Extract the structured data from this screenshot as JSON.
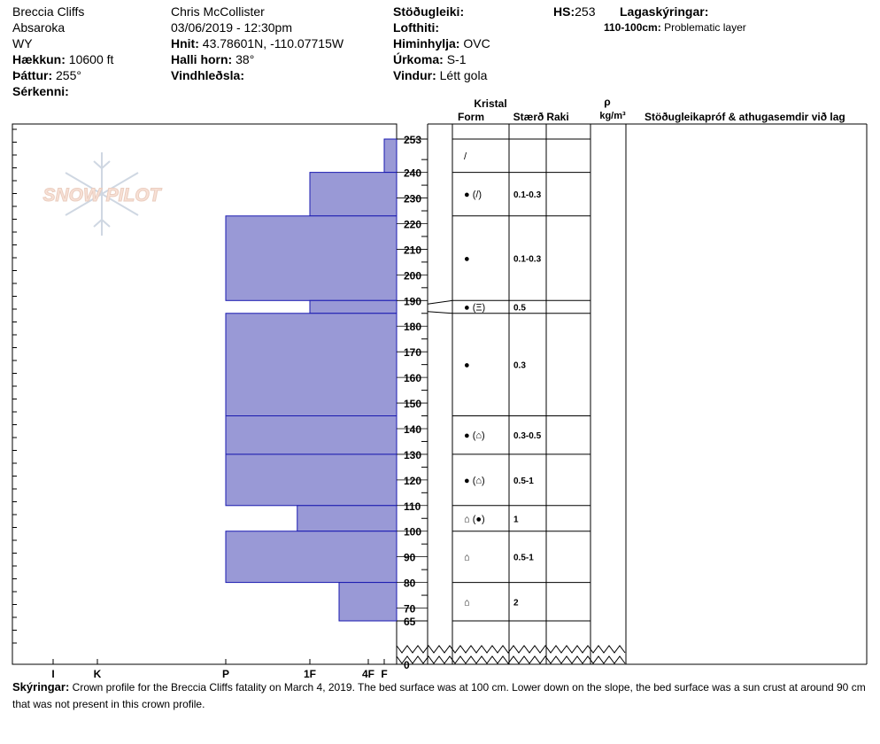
{
  "header": {
    "location": "Breccia Cliffs",
    "range": "Absaroka",
    "state": "WY",
    "elevation_label": "Hækkun:",
    "elevation_value": "10600 ft",
    "aspect_label": "Þáttur:",
    "aspect_value": "255°",
    "features_label": "Sérkenni:",
    "observer": "Chris McCollister",
    "datetime": "03/06/2019 - 12:30pm",
    "coords_label": "Hnit:",
    "coords_value": "43.78601N, -110.07715W",
    "slope_label": "Halli horn:",
    "slope_value": "38°",
    "wind_loading_label": "Vindhleðsla:",
    "stability_label": "Stöðugleiki:",
    "air_temp_label": "Lofthiti:",
    "sky_label": "Himinhylja:",
    "sky_value": "OVC",
    "precip_label": "Úrkoma:",
    "precip_value": "S-1",
    "wind_label": "Vindur:",
    "wind_value": "Létt gola",
    "hs_label": "HS:",
    "hs_value": "253",
    "legend_label": "Lagaskýringar:",
    "legend_item_range": "110-100cm:",
    "legend_item_text": "Problematic layer"
  },
  "columns": {
    "crystal": "Kristal",
    "form": "Form",
    "size": "Stærð",
    "moisture": "Raki",
    "rho": "ρ",
    "density_unit": "kg/m³",
    "tests": "Stöðugleikapróf & athugasemdir við lag"
  },
  "chart_data": {
    "type": "bar",
    "x_axis": {
      "ticks": [
        "I",
        "K",
        "P",
        "1F",
        "4F",
        "F"
      ],
      "tick_values": [
        5,
        4,
        3,
        2,
        1.5,
        1
      ]
    },
    "y_axis": {
      "unit": "cm",
      "range": [
        0,
        265
      ],
      "tick_labels": [
        253,
        240,
        230,
        220,
        210,
        200,
        190,
        180,
        170,
        160,
        150,
        140,
        130,
        120,
        110,
        100,
        90,
        80,
        70,
        65,
        0
      ]
    },
    "layers": [
      {
        "top": 253,
        "bottom": 240,
        "hardness": 1.0,
        "forms": [
          "/"
        ],
        "size": ""
      },
      {
        "top": 240,
        "bottom": 223,
        "hardness": 2.0,
        "forms": [
          "●",
          "(/)"
        ],
        "size": "0.1-0.3"
      },
      {
        "top": 223,
        "bottom": 190,
        "hardness": 3.0,
        "forms": [
          "●"
        ],
        "size": "0.1-0.3"
      },
      {
        "top": 190,
        "bottom": 185,
        "hardness": 2.0,
        "forms": [
          "●",
          "(Ξ)"
        ],
        "size": "0.5"
      },
      {
        "top": 185,
        "bottom": 145,
        "hardness": 3.0,
        "forms": [
          "●"
        ],
        "size": "0.3"
      },
      {
        "top": 145,
        "bottom": 130,
        "hardness": 3.0,
        "forms": [
          "●",
          "(⌂)"
        ],
        "size": "0.3-0.5"
      },
      {
        "top": 130,
        "bottom": 110,
        "hardness": 3.0,
        "forms": [
          "●",
          "(⌂)"
        ],
        "size": "0.5-1"
      },
      {
        "top": 110,
        "bottom": 100,
        "hardness": 2.15,
        "forms": [
          "⌂",
          "(●)"
        ],
        "size": "1"
      },
      {
        "top": 100,
        "bottom": 80,
        "hardness": 3.0,
        "forms": [
          "⌂"
        ],
        "size": "0.5-1"
      },
      {
        "top": 80,
        "bottom": 65,
        "hardness": 1.75,
        "forms": [
          "⌂"
        ],
        "size": "2"
      }
    ],
    "bar_color": "#9999d6",
    "bar_stroke": "#1a1ab0"
  },
  "notes": {
    "label": "Skýringar:",
    "text": "Crown profile for the Breccia Cliffs fatality on March 4, 2019. The bed surface was at 100 cm. Lower down on the slope, the bed surface was a sun crust at around 90 cm that was not present in this crown profile."
  },
  "logo": {
    "text": "SNOW PILOT"
  }
}
